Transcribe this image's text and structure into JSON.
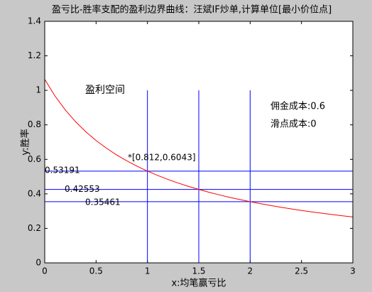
{
  "chart_data": {
    "type": "line",
    "title": "盈亏比-胜率支配的盈利边界曲线：汪斌IF炒单,计算单位[最小价位点]",
    "xlabel": "x:均笔赢亏比",
    "ylabel": "y:胜率",
    "x": [
      0,
      0.1,
      0.2,
      0.3,
      0.4,
      0.5,
      0.6,
      0.7,
      0.8,
      0.9,
      1.0,
      1.1,
      1.2,
      1.3,
      1.4,
      1.5,
      1.6,
      1.7,
      1.8,
      1.9,
      2.0,
      2.1,
      2.2,
      2.3,
      2.4,
      2.5,
      2.6,
      2.7,
      2.8,
      2.9,
      3.0
    ],
    "values": [
      1.0638,
      0.9671,
      0.8865,
      0.8183,
      0.7599,
      0.7092,
      0.6649,
      0.6258,
      0.591,
      0.5599,
      0.5319,
      0.5066,
      0.4835,
      0.4625,
      0.4433,
      0.4255,
      0.4092,
      0.394,
      0.3799,
      0.3668,
      0.3546,
      0.3432,
      0.3324,
      0.3224,
      0.3129,
      0.3039,
      0.2955,
      0.2875,
      0.2799,
      0.2728,
      0.2659
    ],
    "color": "#ff0000",
    "ref_color": "#0000ff",
    "vlines": [
      1,
      1.5,
      2
    ],
    "vline_top": 1,
    "hlines": [
      0.53191,
      0.42553,
      0.35461
    ],
    "annotations": [
      "*[0.812,0.6043]",
      "盈利空间",
      "佣金成本:0.6",
      "滑点成本:0"
    ],
    "xlim": [
      0,
      3
    ],
    "xticks": [
      0,
      0.5,
      1,
      1.5,
      2,
      2.5,
      3
    ],
    "ylim": [
      0,
      1.4
    ],
    "yticks": [
      0,
      0.2,
      0.4,
      0.6,
      0.8,
      1,
      1.2,
      1.4
    ]
  }
}
